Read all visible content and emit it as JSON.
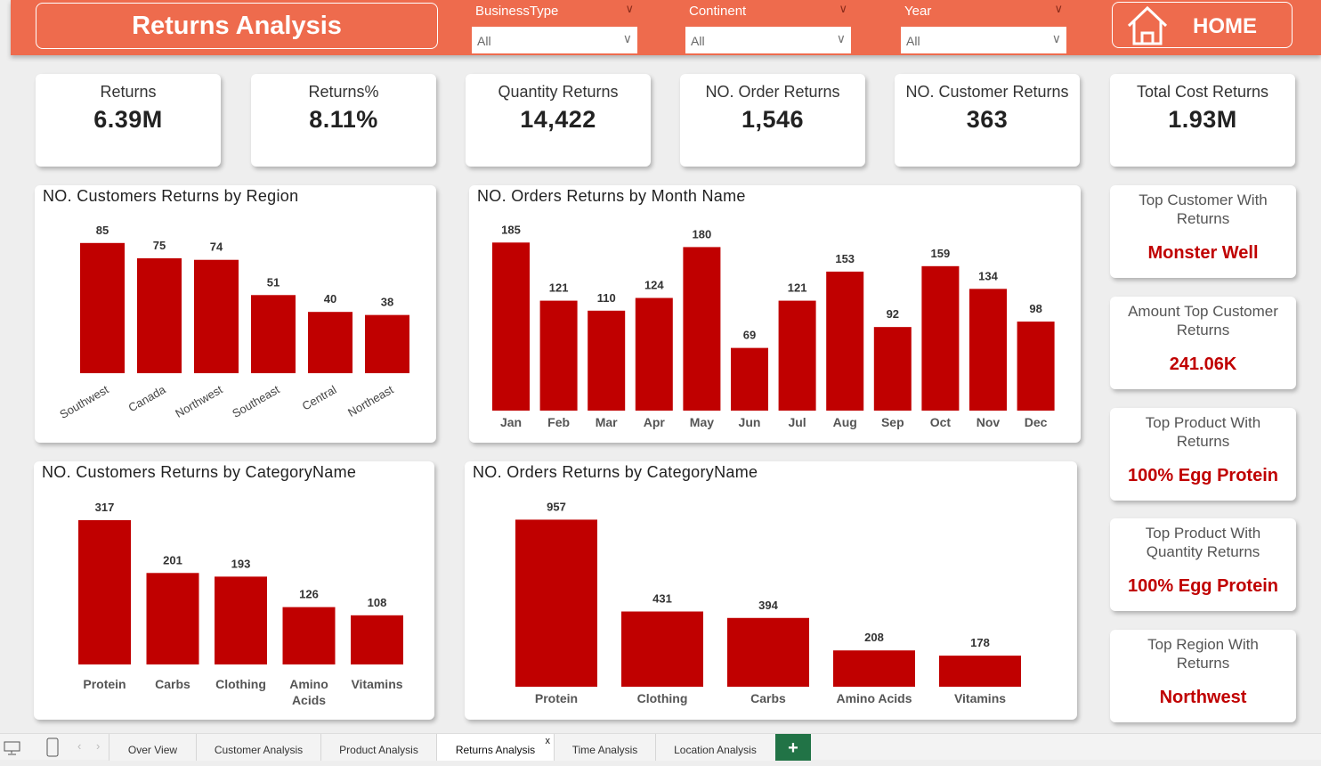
{
  "header": {
    "title": "Returns Analysis",
    "home_label": "HOME",
    "filters": [
      {
        "label": "BusinessType",
        "value": "All"
      },
      {
        "label": "Continent",
        "value": "All"
      },
      {
        "label": "Year",
        "value": "All"
      }
    ]
  },
  "kpis": [
    {
      "title": "Returns",
      "value": "6.39M"
    },
    {
      "title": "Returns%",
      "value": "8.11%"
    },
    {
      "title": "Quantity Returns",
      "value": "14,422"
    },
    {
      "title": "NO. Order Returns",
      "value": "1,546"
    },
    {
      "title": "NO. Customer Returns",
      "value": "363"
    },
    {
      "title": "Total Cost Returns",
      "value": "1.93M"
    }
  ],
  "side_cards": [
    {
      "title": "Top Customer With Returns",
      "value": "Monster Well"
    },
    {
      "title": "Amount Top Customer Returns",
      "value": "241.06K"
    },
    {
      "title": "Top Product With Returns",
      "value": "100% Egg Protein"
    },
    {
      "title": "Top Product With Quantity Returns",
      "value": "100% Egg Protein"
    },
    {
      "title": "Top Region With Returns",
      "value": "Northwest"
    }
  ],
  "colors": {
    "bar": "#C00000",
    "header": "#EE6B4D"
  },
  "chart_data": [
    {
      "type": "bar",
      "title": "NO. Customers Returns by Region",
      "categories": [
        "Southwest",
        "Canada",
        "Northwest",
        "Southeast",
        "Central",
        "Northeast"
      ],
      "values": [
        85,
        75,
        74,
        51,
        40,
        38
      ]
    },
    {
      "type": "bar",
      "title": "NO. Orders Returns by Month Name",
      "categories": [
        "Jan",
        "Feb",
        "Mar",
        "Apr",
        "May",
        "Jun",
        "Jul",
        "Aug",
        "Sep",
        "Oct",
        "Nov",
        "Dec"
      ],
      "values": [
        185,
        121,
        110,
        124,
        180,
        69,
        121,
        153,
        92,
        159,
        134,
        98
      ]
    },
    {
      "type": "bar",
      "title": "NO. Customers Returns by CategoryName",
      "categories": [
        "Protein",
        "Carbs",
        "Clothing",
        "Amino Acids",
        "Vitamins"
      ],
      "values": [
        317,
        201,
        193,
        126,
        108
      ]
    },
    {
      "type": "bar",
      "title": "NO. Orders Returns by CategoryName",
      "categories": [
        "Protein",
        "Clothing",
        "Carbs",
        "Amino Acids",
        "Vitamins"
      ],
      "values": [
        957,
        431,
        394,
        208,
        178
      ]
    }
  ],
  "tabs": [
    "Over View",
    "Customer Analysis",
    "Product Analysis",
    "Returns Analysis",
    "Time Analysis",
    "Location Analysis"
  ],
  "active_tab": "Returns Analysis"
}
